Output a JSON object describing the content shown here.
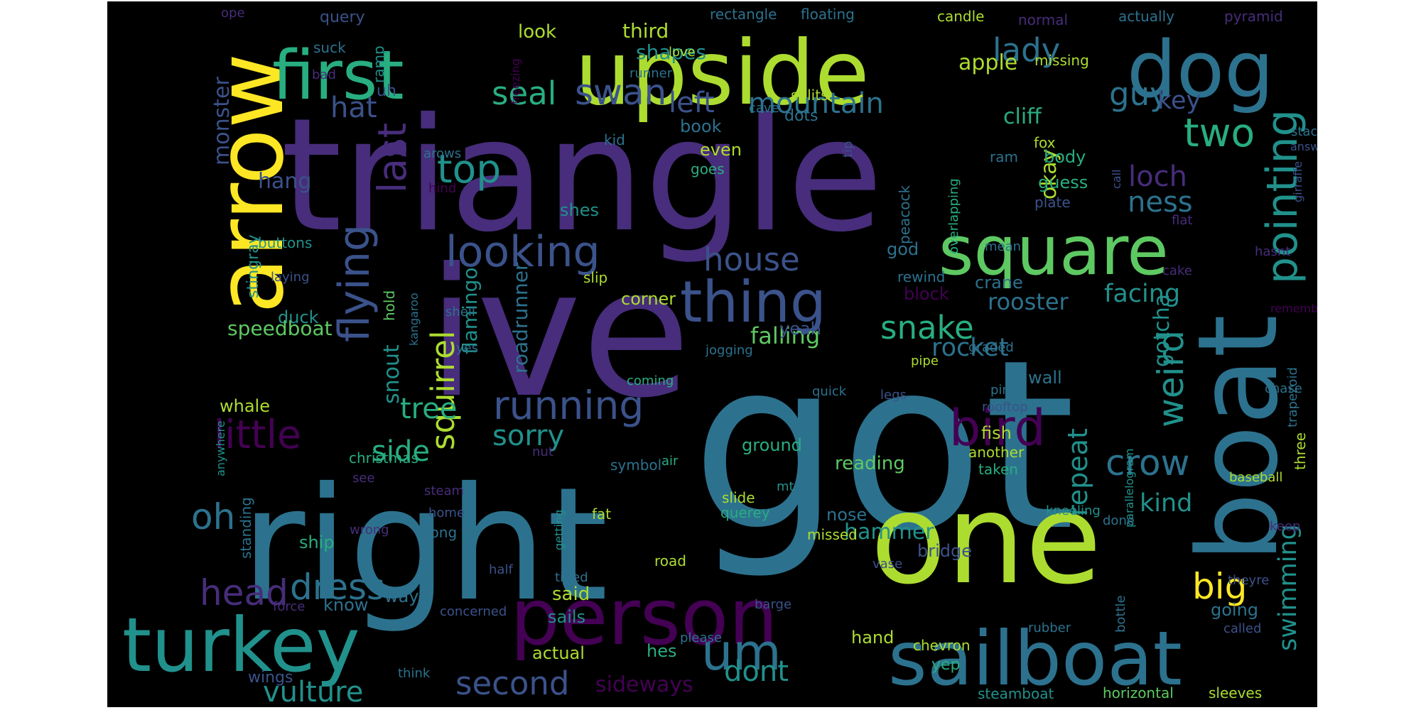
{
  "colors": {
    "background": "#000000",
    "page": "#ffffff",
    "palette": [
      "#440154",
      "#472d7b",
      "#3b528b",
      "#2c728e",
      "#21918c",
      "#28ae80",
      "#5ec962",
      "#addc30",
      "#fde725"
    ]
  },
  "words": [
    {
      "text": "triangle",
      "c": 1
    },
    {
      "text": "got",
      "c": 3
    },
    {
      "text": "ive",
      "c": 1
    },
    {
      "text": "right",
      "c": 3
    },
    {
      "text": "one",
      "c": 7
    },
    {
      "text": "arrow",
      "c": 8
    },
    {
      "text": "boat",
      "c": 3
    },
    {
      "text": "upside",
      "c": 7
    },
    {
      "text": "first",
      "c": 5
    },
    {
      "text": "dog",
      "c": 3
    },
    {
      "text": "person",
      "c": 0
    },
    {
      "text": "turkey",
      "c": 4
    },
    {
      "text": "sailboat",
      "c": 3
    },
    {
      "text": "square",
      "c": 6
    },
    {
      "text": "thing",
      "c": 2
    },
    {
      "text": "flying",
      "c": 2
    },
    {
      "text": "um",
      "c": 3
    },
    {
      "text": "pointing",
      "c": 4
    },
    {
      "text": "looking",
      "c": 2
    },
    {
      "text": "bird",
      "c": 0
    },
    {
      "text": "last",
      "c": 1
    },
    {
      "text": "lady",
      "c": 3
    },
    {
      "text": "running",
      "c": 2
    },
    {
      "text": "little",
      "c": 0
    },
    {
      "text": "big",
      "c": 8
    },
    {
      "text": "mountain",
      "c": 3
    },
    {
      "text": "swan",
      "c": 2
    },
    {
      "text": "two",
      "c": 5
    },
    {
      "text": "guy",
      "c": 3
    },
    {
      "text": "crow",
      "c": 3
    },
    {
      "text": "left",
      "c": 2
    },
    {
      "text": "weird",
      "c": 4
    },
    {
      "text": "snake",
      "c": 5
    },
    {
      "text": "house",
      "c": 2
    },
    {
      "text": "seal",
      "c": 5
    },
    {
      "text": "top",
      "c": 4
    },
    {
      "text": "head",
      "c": 1
    },
    {
      "text": "dress",
      "c": 3
    },
    {
      "text": "squirrel",
      "c": 7
    },
    {
      "text": "oh",
      "c": 3
    },
    {
      "text": "second",
      "c": 2
    },
    {
      "text": "vulture",
      "c": 4
    },
    {
      "text": "loch",
      "c": 1
    },
    {
      "text": "ness",
      "c": 3
    },
    {
      "text": "hat",
      "c": 2
    },
    {
      "text": "key",
      "c": 2
    },
    {
      "text": "sorry",
      "c": 4
    },
    {
      "text": "side",
      "c": 5
    },
    {
      "text": "tree",
      "c": 5
    },
    {
      "text": "repeat",
      "c": 4
    },
    {
      "text": "dont",
      "c": 4
    },
    {
      "text": "swimming",
      "c": 4
    },
    {
      "text": "facing",
      "c": 4
    },
    {
      "text": "kind",
      "c": 4
    },
    {
      "text": "okay",
      "c": 7
    },
    {
      "text": "gotcha",
      "c": 4
    },
    {
      "text": "snout",
      "c": 4
    },
    {
      "text": "rocket",
      "c": 3
    },
    {
      "text": "rooster",
      "c": 3
    },
    {
      "text": "falling",
      "c": 6
    },
    {
      "text": "roadrunner",
      "c": 3
    },
    {
      "text": "flamingo",
      "c": 4
    },
    {
      "text": "hammer",
      "c": 4
    },
    {
      "text": "sideways",
      "c": 0
    },
    {
      "text": "cliff",
      "c": 5
    },
    {
      "text": "monster",
      "c": 2
    },
    {
      "text": "hang",
      "c": 2
    },
    {
      "text": "apple",
      "c": 7
    },
    {
      "text": "shapes",
      "c": 4
    },
    {
      "text": "third",
      "c": 7
    },
    {
      "text": "look",
      "c": 7
    },
    {
      "text": "query",
      "c": 2
    },
    {
      "text": "rectangle",
      "c": 3
    },
    {
      "text": "floating",
      "c": 3
    },
    {
      "text": "candle",
      "c": 7
    },
    {
      "text": "normal",
      "c": 1
    },
    {
      "text": "actually",
      "c": 3
    },
    {
      "text": "pyramid",
      "c": 1
    },
    {
      "text": "missing",
      "c": 7
    },
    {
      "text": "love",
      "c": 7
    },
    {
      "text": "runner",
      "c": 3
    },
    {
      "text": "splits",
      "c": 7
    },
    {
      "text": "ramp",
      "c": 4
    },
    {
      "text": "suck",
      "c": 3
    },
    {
      "text": "bad",
      "c": 1
    },
    {
      "text": "ope",
      "c": 1
    },
    {
      "text": "uh",
      "c": 2
    },
    {
      "text": "freezing",
      "c": 0
    },
    {
      "text": "cave",
      "c": 3
    },
    {
      "text": "book",
      "c": 3
    },
    {
      "text": "dots",
      "c": 3
    },
    {
      "text": "tip",
      "c": 2
    },
    {
      "text": "even",
      "c": 7
    },
    {
      "text": "goes",
      "c": 5
    },
    {
      "text": "kid",
      "c": 3
    },
    {
      "text": "shes",
      "c": 4
    },
    {
      "text": "body",
      "c": 5
    },
    {
      "text": "guess",
      "c": 5
    },
    {
      "text": "plate",
      "c": 2
    },
    {
      "text": "fox",
      "c": 7
    },
    {
      "text": "ram",
      "c": 3
    },
    {
      "text": "overlapping",
      "c": 5
    },
    {
      "text": "peacock",
      "c": 3
    },
    {
      "text": "god",
      "c": 3
    },
    {
      "text": "arows",
      "c": 3
    },
    {
      "text": "hind",
      "c": 0
    },
    {
      "text": "buttons",
      "c": 4
    },
    {
      "text": "laying",
      "c": 2
    },
    {
      "text": "stingray",
      "c": 4
    },
    {
      "text": "duck",
      "c": 4
    },
    {
      "text": "hold",
      "c": 6
    },
    {
      "text": "kangaroo",
      "c": 3
    },
    {
      "text": "slip",
      "c": 7
    },
    {
      "text": "corner",
      "c": 7
    },
    {
      "text": "crane",
      "c": 3
    },
    {
      "text": "block",
      "c": 0
    },
    {
      "text": "rewind",
      "c": 3
    },
    {
      "text": "mean",
      "c": 3
    },
    {
      "text": "call",
      "c": 2
    },
    {
      "text": "flat",
      "c": 1
    },
    {
      "text": "cake",
      "c": 1
    },
    {
      "text": "hasnt",
      "c": 1
    },
    {
      "text": "answer",
      "c": 2
    },
    {
      "text": "stack",
      "c": 3
    },
    {
      "text": "girraffe",
      "c": 2
    },
    {
      "text": "remember",
      "c": 0
    },
    {
      "text": "speedboat",
      "c": 6
    },
    {
      "text": "shell",
      "c": 3
    },
    {
      "text": "yes",
      "c": 3
    },
    {
      "text": "jogging",
      "c": 3
    },
    {
      "text": "yeah",
      "c": 2
    },
    {
      "text": "graded",
      "c": 3
    },
    {
      "text": "wall",
      "c": 3
    },
    {
      "text": "pipe",
      "c": 7
    },
    {
      "text": "whale",
      "c": 7
    },
    {
      "text": "coming",
      "c": 5
    },
    {
      "text": "quick",
      "c": 3
    },
    {
      "text": "legs",
      "c": 2
    },
    {
      "text": "pine",
      "c": 3
    },
    {
      "text": "rooftop",
      "c": 2
    },
    {
      "text": "chase",
      "c": 3
    },
    {
      "text": "trapezoid",
      "c": 3
    },
    {
      "text": "three",
      "c": 7
    },
    {
      "text": "anywhere",
      "c": 4
    },
    {
      "text": "christmas",
      "c": 5
    },
    {
      "text": "fish",
      "c": 7
    },
    {
      "text": "another",
      "c": 7
    },
    {
      "text": "taken",
      "c": 5
    },
    {
      "text": "parallelogram",
      "c": 4
    },
    {
      "text": "baseball",
      "c": 7
    },
    {
      "text": "ground",
      "c": 5
    },
    {
      "text": "reading",
      "c": 6
    },
    {
      "text": "nut",
      "c": 1
    },
    {
      "text": "air",
      "c": 5
    },
    {
      "text": "symbol",
      "c": 3
    },
    {
      "text": "standing",
      "c": 3
    },
    {
      "text": "see",
      "c": 1
    },
    {
      "text": "steam",
      "c": 1
    },
    {
      "text": "home",
      "c": 2
    },
    {
      "text": "wrong",
      "c": 1
    },
    {
      "text": "long",
      "c": 3
    },
    {
      "text": "ship",
      "c": 5
    },
    {
      "text": "fat",
      "c": 7
    },
    {
      "text": "getting",
      "c": 4
    },
    {
      "text": "slide",
      "c": 7
    },
    {
      "text": "querey",
      "c": 5
    },
    {
      "text": "mt",
      "c": 4
    },
    {
      "text": "missed",
      "c": 7
    },
    {
      "text": "nose",
      "c": 3
    },
    {
      "text": "bridge",
      "c": 2
    },
    {
      "text": "kneeling",
      "c": 4
    },
    {
      "text": "done",
      "c": 3
    },
    {
      "text": "keep",
      "c": 1
    },
    {
      "text": "road",
      "c": 7
    },
    {
      "text": "half",
      "c": 2
    },
    {
      "text": "tilted",
      "c": 3
    },
    {
      "text": "vase",
      "c": 2
    },
    {
      "text": "force",
      "c": 1
    },
    {
      "text": "know",
      "c": 3
    },
    {
      "text": "way",
      "c": 3
    },
    {
      "text": "said",
      "c": 7
    },
    {
      "text": "sails",
      "c": 4
    },
    {
      "text": "concerned",
      "c": 2
    },
    {
      "text": "barge",
      "c": 2
    },
    {
      "text": "going",
      "c": 3
    },
    {
      "text": "theyre",
      "c": 2
    },
    {
      "text": "rubber",
      "c": 3
    },
    {
      "text": "bottle",
      "c": 3
    },
    {
      "text": "called",
      "c": 2
    },
    {
      "text": "hand",
      "c": 7
    },
    {
      "text": "chevron",
      "c": 7
    },
    {
      "text": "yep",
      "c": 5
    },
    {
      "text": "please",
      "c": 3
    },
    {
      "text": "hes",
      "c": 5
    },
    {
      "text": "actual",
      "c": 7
    },
    {
      "text": "wings",
      "c": 2
    },
    {
      "text": "think",
      "c": 3
    },
    {
      "text": "steamboat",
      "c": 4
    },
    {
      "text": "horizontal",
      "c": 6
    },
    {
      "text": "sleeves",
      "c": 7
    }
  ]
}
